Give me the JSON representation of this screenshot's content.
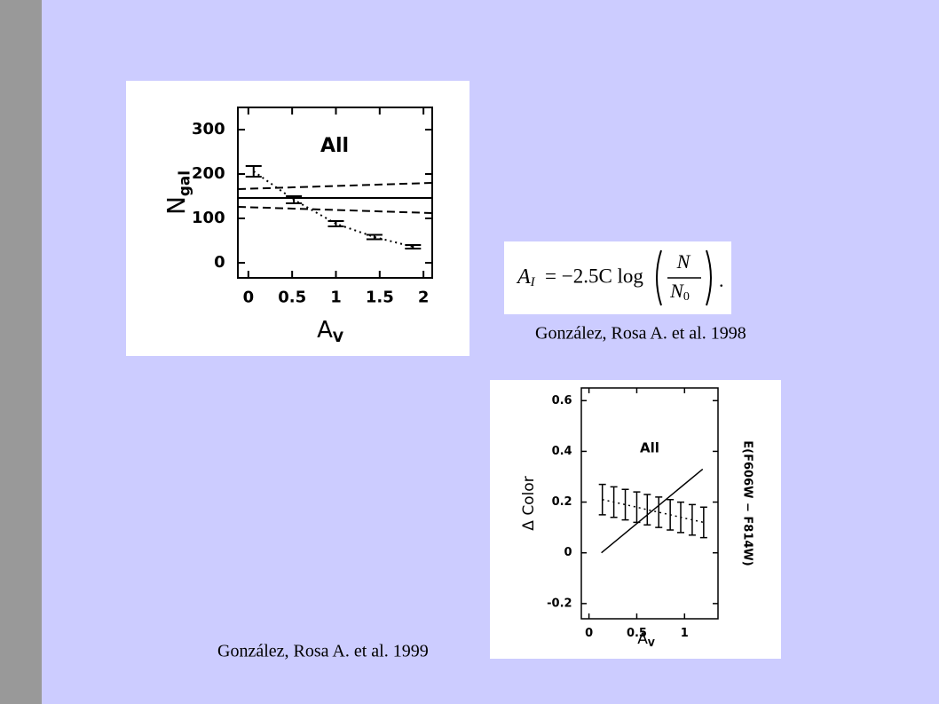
{
  "chart_data": [
    {
      "type": "line",
      "annotation": "All",
      "x_label": "A",
      "x_label_sub": "V",
      "y_label": "N",
      "y_label_sub": "gal",
      "xlim": [
        -0.12,
        2.1
      ],
      "xticks": [
        0,
        0.5,
        1,
        1.5,
        2
      ],
      "ylim": [
        -34,
        350
      ],
      "yticks": [
        0,
        100,
        200,
        300
      ],
      "series": [
        {
          "color": "#000000",
          "style": "dotted",
          "x": [
            0.06,
            0.52,
            1.0,
            1.44,
            1.88
          ],
          "values": [
            206,
            142,
            88,
            58,
            36
          ],
          "errors": [
            12,
            8,
            6,
            5,
            4
          ]
        },
        {
          "color": "#000000",
          "style": "solid",
          "x": [
            -0.12,
            2.1
          ],
          "values": [
            146,
            146
          ]
        },
        {
          "color": "#000000",
          "style": "dashed",
          "x": [
            -0.12,
            2.1
          ],
          "values": [
            166,
            180
          ]
        },
        {
          "color": "#000000",
          "style": "dashed",
          "x": [
            -0.12,
            2.1
          ],
          "values": [
            126,
            112
          ]
        }
      ]
    },
    {
      "type": "line",
      "annotation": "All",
      "x_label": "A",
      "x_label_sub": "V",
      "y_label": "Δ Color",
      "right_label": "E(F606W − F814W)",
      "xlim": [
        -0.08,
        1.35
      ],
      "xticks": [
        0,
        0.5,
        1
      ],
      "ylim": [
        -0.26,
        0.65
      ],
      "yticks": [
        -0.2,
        0,
        0.2,
        0.4,
        0.6
      ],
      "series": [
        {
          "color": "#000000",
          "style": "dotted",
          "x": [
            0.14,
            0.26,
            0.38,
            0.5,
            0.61,
            0.73,
            0.85,
            0.96,
            1.08,
            1.2
          ],
          "values": [
            0.21,
            0.2,
            0.19,
            0.18,
            0.17,
            0.16,
            0.15,
            0.14,
            0.13,
            0.12
          ],
          "errors": [
            0.06,
            0.06,
            0.06,
            0.06,
            0.06,
            0.06,
            0.06,
            0.06,
            0.06,
            0.06
          ]
        },
        {
          "color": "#000000",
          "style": "solid",
          "x": [
            0.13,
            1.19
          ],
          "values": [
            0,
            0.33
          ]
        }
      ]
    }
  ],
  "equation": {
    "lhs": "A",
    "lhs_sub": "I",
    "rhs": "= −2.5C log",
    "num": "N",
    "den": "N",
    "den_sub": "0",
    "end": "."
  },
  "captions": [
    "González, Rosa A.  et al. 1998",
    "González, Rosa A.  et al. 1999"
  ]
}
